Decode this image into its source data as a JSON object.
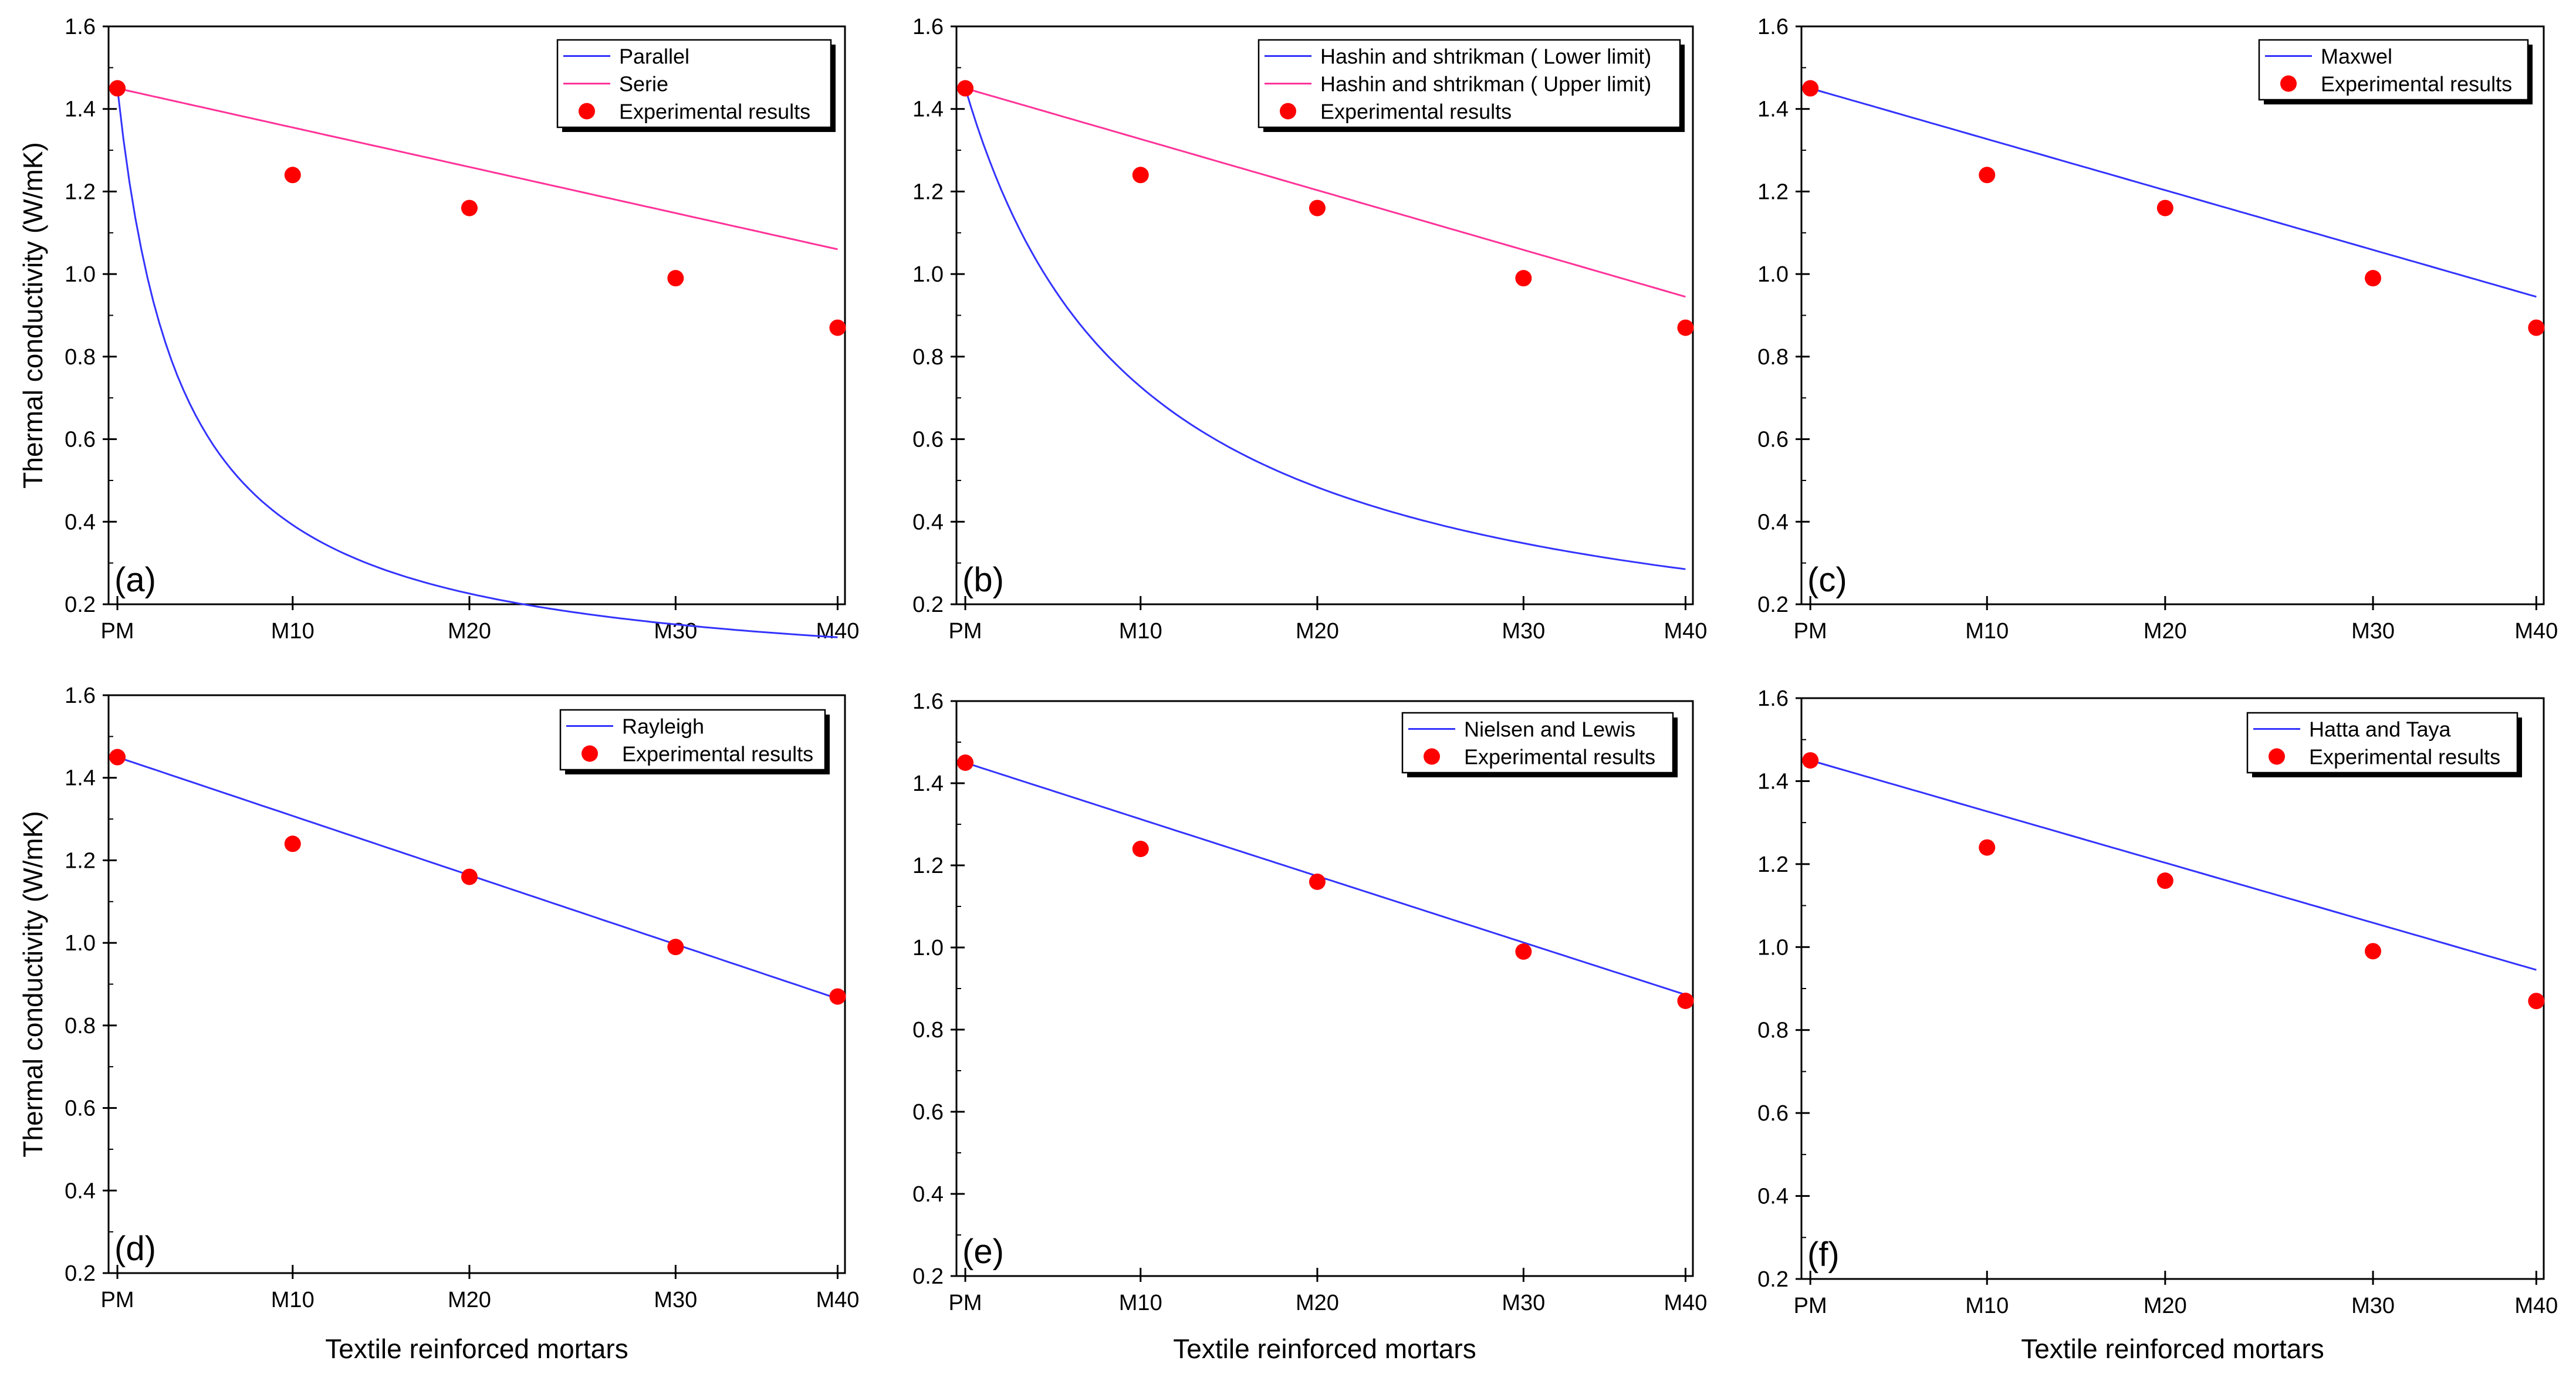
{
  "figure": {
    "x_axis_title": "Textile reinforced mortars",
    "y_axis_title": "Thermal conductivity (W/mK)"
  },
  "chart_data": [
    {
      "type": "line",
      "panel": "(a)",
      "categories": [
        "PM",
        "M10",
        "M20",
        "M30",
        "M40"
      ],
      "ylim": [
        0.2,
        1.6
      ],
      "yticks": [
        "0.2",
        "0.4",
        "0.6",
        "0.8",
        "1.0",
        "1.2",
        "1.4",
        "1.6"
      ],
      "ylabel": "Thermal conductivity (W/mK)",
      "xlabel": "",
      "legend_position": "top-right",
      "series": [
        {
          "name": "Parallel",
          "kind": "line",
          "color": "#3333ff",
          "model": {
            "type": "parallel",
            "k0": 1.45,
            "k1": 0.12
          }
        },
        {
          "name": "Serie",
          "kind": "line",
          "color": "#ff3399",
          "model": {
            "type": "linear",
            "k0": 1.45,
            "k1": 1.06
          }
        },
        {
          "name": "Experimental results",
          "kind": "scatter",
          "color": "#ff0000",
          "values": [
            1.45,
            1.24,
            1.16,
            0.99,
            0.87
          ]
        }
      ]
    },
    {
      "type": "line",
      "panel": "(b)",
      "categories": [
        "PM",
        "M10",
        "M20",
        "M30",
        "M40"
      ],
      "ylim": [
        0.2,
        1.6
      ],
      "yticks": [
        "0.2",
        "0.4",
        "0.6",
        "0.8",
        "1.0",
        "1.2",
        "1.4",
        "1.6"
      ],
      "ylabel": "",
      "xlabel": "",
      "legend_position": "top-right",
      "series": [
        {
          "name": "Hashin and shtrikman ( Lower limit)",
          "kind": "line",
          "color": "#3333ff",
          "model": {
            "type": "parallel",
            "k0": 1.45,
            "k1": 0.285
          }
        },
        {
          "name": "Hashin and shtrikman ( Upper limit)",
          "kind": "line",
          "color": "#ff3399",
          "model": {
            "type": "linear",
            "k0": 1.45,
            "k1": 0.945
          }
        },
        {
          "name": "Experimental results",
          "kind": "scatter",
          "color": "#ff0000",
          "values": [
            1.45,
            1.24,
            1.16,
            0.99,
            0.87
          ]
        }
      ]
    },
    {
      "type": "line",
      "panel": "(c)",
      "categories": [
        "PM",
        "M10",
        "M20",
        "M30",
        "M40"
      ],
      "ylim": [
        0.2,
        1.6
      ],
      "yticks": [
        "0.2",
        "0.4",
        "0.6",
        "0.8",
        "1.0",
        "1.2",
        "1.4",
        "1.6"
      ],
      "ylabel": "",
      "xlabel": "",
      "legend_position": "top-right",
      "series": [
        {
          "name": "Maxwel",
          "kind": "line",
          "color": "#3333ff",
          "model": {
            "type": "linear",
            "k0": 1.45,
            "k1": 0.945
          }
        },
        {
          "name": "Experimental results",
          "kind": "scatter",
          "color": "#ff0000",
          "values": [
            1.45,
            1.24,
            1.16,
            0.99,
            0.87
          ]
        }
      ]
    },
    {
      "type": "line",
      "panel": "(d)",
      "categories": [
        "PM",
        "M10",
        "M20",
        "M30",
        "M40"
      ],
      "ylim": [
        0.2,
        1.6
      ],
      "yticks": [
        "0.2",
        "0.4",
        "0.6",
        "0.8",
        "1.0",
        "1.2",
        "1.4",
        "1.6"
      ],
      "ylabel": "Thermal conductivity (W/mK)",
      "xlabel": "Textile reinforced mortars",
      "legend_position": "top-right",
      "series": [
        {
          "name": "Rayleigh",
          "kind": "line",
          "color": "#3333ff",
          "model": {
            "type": "linear",
            "k0": 1.45,
            "k1": 0.865
          }
        },
        {
          "name": "Experimental results",
          "kind": "scatter",
          "color": "#ff0000",
          "values": [
            1.45,
            1.24,
            1.16,
            0.99,
            0.87
          ]
        }
      ]
    },
    {
      "type": "line",
      "panel": "(e)",
      "categories": [
        "PM",
        "M10",
        "M20",
        "M30",
        "M40"
      ],
      "ylim": [
        0.2,
        1.6
      ],
      "yticks": [
        "0.2",
        "0.4",
        "0.6",
        "0.8",
        "1.0",
        "1.2",
        "1.4",
        "1.6"
      ],
      "ylabel": "",
      "xlabel": "Textile reinforced mortars",
      "legend_position": "top-right",
      "series": [
        {
          "name": "Nielsen and Lewis",
          "kind": "line",
          "color": "#3333ff",
          "model": {
            "type": "linear",
            "k0": 1.45,
            "k1": 0.885
          }
        },
        {
          "name": "Experimental results",
          "kind": "scatter",
          "color": "#ff0000",
          "values": [
            1.45,
            1.24,
            1.16,
            0.99,
            0.87
          ]
        }
      ]
    },
    {
      "type": "line",
      "panel": "(f)",
      "categories": [
        "PM",
        "M10",
        "M20",
        "M30",
        "M40"
      ],
      "ylim": [
        0.2,
        1.6
      ],
      "yticks": [
        "0.2",
        "0.4",
        "0.6",
        "0.8",
        "1.0",
        "1.2",
        "1.4",
        "1.6"
      ],
      "ylabel": "",
      "xlabel": "Textile reinforced mortars",
      "legend_position": "top-right",
      "series": [
        {
          "name": "Hatta and Taya",
          "kind": "line",
          "color": "#3333ff",
          "model": {
            "type": "linear",
            "k0": 1.45,
            "k1": 0.945
          }
        },
        {
          "name": "Experimental results",
          "kind": "scatter",
          "color": "#ff0000",
          "values": [
            1.45,
            1.24,
            1.16,
            0.99,
            0.87
          ]
        }
      ]
    }
  ]
}
